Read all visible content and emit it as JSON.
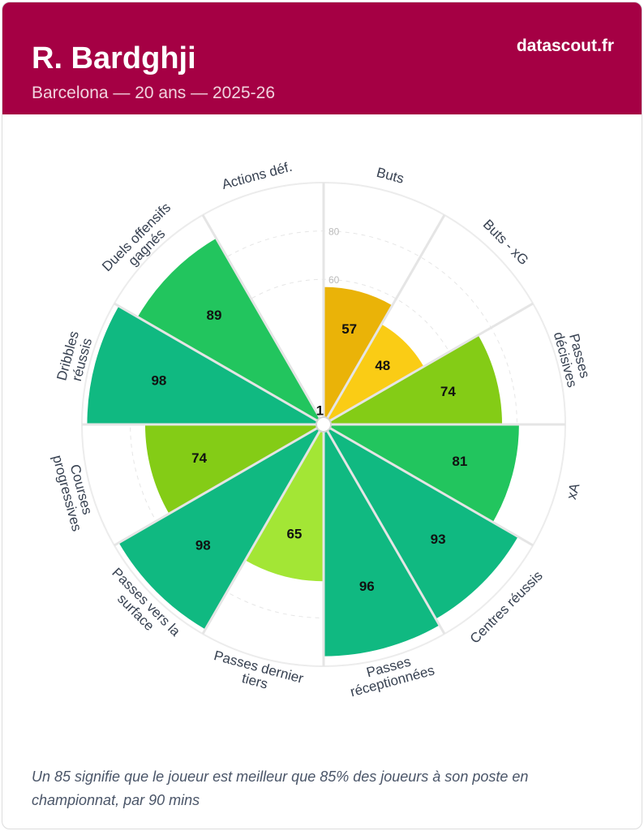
{
  "header": {
    "player_name": "R. Bardghji",
    "subtitle": "Barcelona — 20 ans — 2025-26",
    "brand": "datascout.fr"
  },
  "footnote": "Un 85 signifie que le joueur est meilleur que 85% des joueurs à son poste en championnat, par 90 mins",
  "colors": {
    "header_bg": "#a50044",
    "low": "#eab308",
    "mid_low": "#facc15",
    "mid": "#84cc16",
    "mid_high": "#a3e635",
    "high": "#22c55e",
    "elite": "#10b981"
  },
  "chart_data": {
    "type": "polar-bar",
    "title": "R. Bardghji",
    "rmax": 100,
    "gridlines": [
      60,
      80
    ],
    "categories": [
      {
        "label": [
          "Buts"
        ],
        "value": 57,
        "color": "#eab308"
      },
      {
        "label": [
          "Buts - xG"
        ],
        "value": 48,
        "color": "#facc15"
      },
      {
        "label": [
          "Passes",
          "décisives"
        ],
        "value": 74,
        "color": "#84cc16"
      },
      {
        "label": [
          "xA"
        ],
        "value": 81,
        "color": "#22c55e"
      },
      {
        "label": [
          "Centres réussis"
        ],
        "value": 93,
        "color": "#10b981"
      },
      {
        "label": [
          "Passes",
          "réceptionnées"
        ],
        "value": 96,
        "color": "#10b981"
      },
      {
        "label": [
          "Passes dernier",
          "tiers"
        ],
        "value": 65,
        "color": "#a3e635"
      },
      {
        "label": [
          "Passes vers la",
          "surface"
        ],
        "value": 98,
        "color": "#10b981"
      },
      {
        "label": [
          "Courses",
          "progressives"
        ],
        "value": 74,
        "color": "#84cc16"
      },
      {
        "label": [
          "Dribbles",
          "réussis"
        ],
        "value": 98,
        "color": "#10b981"
      },
      {
        "label": [
          "Duels offensifs",
          "gagnés"
        ],
        "value": 89,
        "color": "#22c55e"
      },
      {
        "label": [
          "Actions déf."
        ],
        "value": 1,
        "color": "#ef4444"
      }
    ]
  }
}
